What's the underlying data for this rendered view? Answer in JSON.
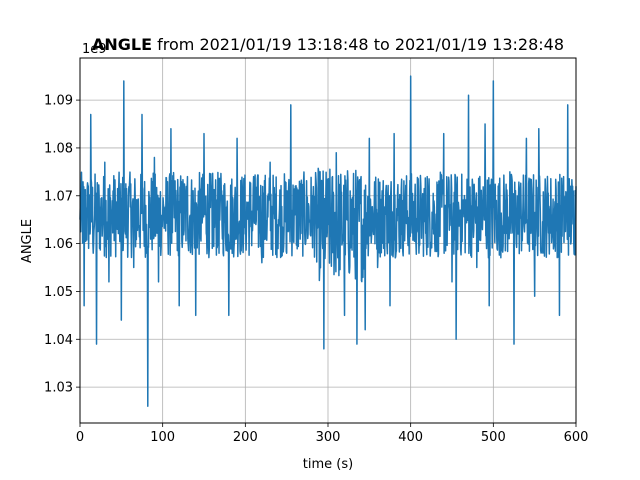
{
  "chart_data": {
    "type": "line",
    "title_bold": "ANGLE",
    "title_rest": " from 2021/01/19 13:18:48 to 2021/01/19 13:28:48",
    "xlabel": "time (s)",
    "ylabel": "ANGLE",
    "y_offset_label": "1e9",
    "xlim": [
      0,
      600
    ],
    "ylim": [
      1.0225,
      1.0988
    ],
    "grid": true,
    "color": "#1f77b4",
    "x_ticks": [
      0,
      100,
      200,
      300,
      400,
      500,
      600
    ],
    "x_tick_labels": [
      "0",
      "100",
      "200",
      "300",
      "400",
      "500",
      "600"
    ],
    "y_ticks": [
      1.03,
      1.04,
      1.05,
      1.06,
      1.07,
      1.08,
      1.09
    ],
    "y_tick_labels": [
      "1.03",
      "1.04",
      "1.05",
      "1.06",
      "1.07",
      "1.08",
      "1.09"
    ],
    "series": [
      {
        "x": [
          0,
          5,
          10,
          13,
          16,
          20,
          25,
          30,
          35,
          40,
          45,
          50,
          53,
          55,
          60,
          65,
          70,
          75,
          80,
          82,
          85,
          90,
          95,
          100,
          110,
          120,
          130,
          140,
          150,
          160,
          170,
          180,
          190,
          200,
          210,
          220,
          230,
          240,
          250,
          255,
          260,
          270,
          280,
          290,
          295,
          300,
          310,
          320,
          330,
          335,
          340,
          345,
          350,
          360,
          370,
          375,
          380,
          390,
          400,
          410,
          420,
          430,
          440,
          450,
          455,
          460,
          470,
          480,
          490,
          495,
          500,
          510,
          520,
          525,
          530,
          540,
          550,
          555,
          560,
          570,
          580,
          590,
          600
        ],
        "y": [
          1.065,
          1.047,
          1.072,
          1.087,
          1.058,
          1.039,
          1.066,
          1.077,
          1.052,
          1.071,
          1.063,
          1.044,
          1.094,
          1.062,
          1.073,
          1.055,
          1.068,
          1.087,
          1.058,
          1.026,
          1.068,
          1.078,
          1.052,
          1.066,
          1.084,
          1.047,
          1.074,
          1.045,
          1.083,
          1.059,
          1.071,
          1.045,
          1.082,
          1.062,
          1.074,
          1.056,
          1.077,
          1.065,
          1.058,
          1.089,
          1.066,
          1.071,
          1.063,
          1.055,
          1.038,
          1.064,
          1.079,
          1.045,
          1.062,
          1.039,
          1.074,
          1.042,
          1.082,
          1.055,
          1.071,
          1.047,
          1.083,
          1.069,
          1.095,
          1.058,
          1.074,
          1.062,
          1.083,
          1.052,
          1.04,
          1.067,
          1.091,
          1.055,
          1.085,
          1.047,
          1.094,
          1.063,
          1.075,
          1.039,
          1.062,
          1.082,
          1.049,
          1.084,
          1.058,
          1.066,
          1.045,
          1.089,
          1.072
        ]
      }
    ]
  }
}
